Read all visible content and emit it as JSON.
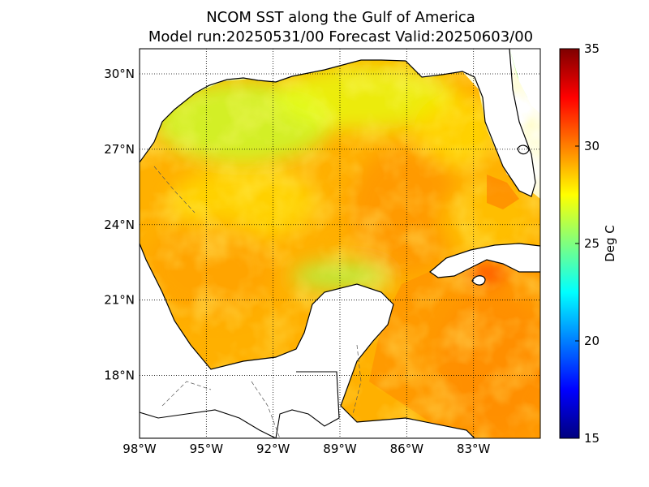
{
  "title": {
    "line1": "NCOM SST along the Gulf of America",
    "line2": "Model run:20250531/00 Forecast Valid:20250603/00"
  },
  "map": {
    "projection": "lat-lon",
    "lon_range": [
      -98,
      -80
    ],
    "lat_range": [
      15.5,
      31
    ],
    "lon_ticks": [
      -98,
      -95,
      -92,
      -89,
      -86,
      -83
    ],
    "lon_tick_labels": [
      "98°W",
      "95°W",
      "92°W",
      "89°W",
      "86°W",
      "83°W"
    ],
    "lat_ticks": [
      18,
      21,
      24,
      27,
      30
    ],
    "lat_tick_labels": [
      "18°N",
      "21°N",
      "24°N",
      "27°N",
      "30°N"
    ],
    "grid": "dotted",
    "land_color": "#ffffff",
    "coastline_color": "#000000"
  },
  "colorbar": {
    "label": "Deg C",
    "min": 15,
    "max": 35,
    "ticks": [
      15,
      20,
      25,
      30,
      35
    ],
    "tick_labels": [
      "15",
      "20",
      "25",
      "30",
      "35"
    ],
    "colormap": "jet",
    "colors": [
      "#00007f",
      "#0000ff",
      "#007fff",
      "#00ffff",
      "#7fff7f",
      "#ffff00",
      "#ff7f00",
      "#ff0000",
      "#7f0000"
    ]
  },
  "sst_colors": {
    "warm_orange": "#ff9a00",
    "orange": "#ffb400",
    "yellow_orange": "#ffcc00",
    "yellow": "#fff000",
    "yellow_green": "#b8ff40",
    "green": "#80ff70",
    "red_orange": "#ff5a00"
  }
}
